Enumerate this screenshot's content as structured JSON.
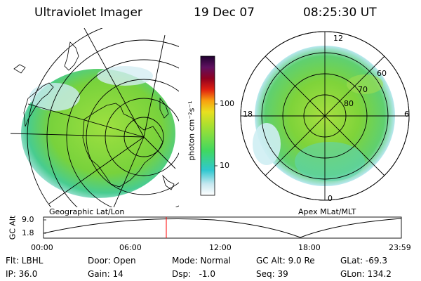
{
  "header": {
    "instrument": "Ultraviolet Imager",
    "date": "19 Dec 07",
    "time": "08:25:30 UT"
  },
  "left_panel": {
    "caption": "Geographic Lat/Lon"
  },
  "right_panel": {
    "caption": "Apex MLat/MLT",
    "mlt_labels": [
      "12",
      "6",
      "0",
      "18"
    ],
    "lat_labels": [
      "60",
      "70",
      "80"
    ]
  },
  "colorbar": {
    "label": "photon cm⁻²s⁻¹",
    "ticks": [
      "100",
      "10"
    ],
    "scale": "log"
  },
  "altitude_plot": {
    "ylabel": "GC Alt",
    "yticks": [
      "9.0",
      "1.8"
    ],
    "xticks": [
      "00:00",
      "06:00",
      "12:00",
      "18:00",
      "23:59"
    ],
    "marker_time": "08:25:30",
    "marker_color": "#ff0000"
  },
  "status": {
    "flt": "Flt: LBHL",
    "ip": "IP: 36.0",
    "door": "Door: Open",
    "gain": "Gain: 14",
    "mode": "Mode: Normal",
    "dsp": "Dsp:   -1.0",
    "gc_alt": "GC Alt: 9.0 Re",
    "seq": "Seq: 39",
    "glat": "GLat: -69.3",
    "glon": "GLon: 134.2"
  },
  "colors": {
    "emission_green": "#7ed33a",
    "emission_cyan": "#36d6d6",
    "background": "#ffffff",
    "grid": "#000000"
  }
}
